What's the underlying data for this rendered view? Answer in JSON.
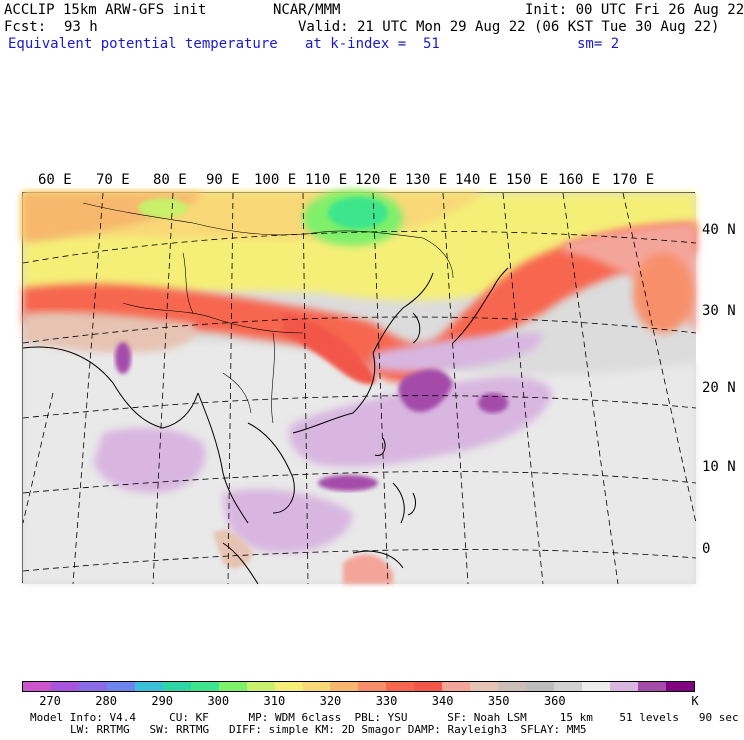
{
  "header": {
    "model": "ACCLIP 15km ARW-GFS init",
    "center": "NCAR/MMM",
    "init": "Init: 00 UTC Fri 26 Aug 22",
    "fcst_label": "Fcst:",
    "fcst_value": "93 h",
    "valid": "Valid: 21 UTC Mon 29 Aug 22 (06 KST Tue 30 Aug 22)",
    "field": "Equivalent potential temperature",
    "level": "at k-index =  51",
    "smooth": "sm= 2"
  },
  "map": {
    "lon_labels": [
      "60 E",
      "70 E",
      "80 E",
      "90 E",
      "100 E",
      "110 E",
      "120 E",
      "130 E",
      "140 E",
      "150 E",
      "160 E",
      "170 E"
    ],
    "lat_labels": [
      "40 N",
      "30 N",
      "20 N",
      "10 N",
      "0"
    ]
  },
  "colorbar": {
    "colors": [
      "#cc55cc",
      "#a855dd",
      "#8a6ce6",
      "#6f85ee",
      "#3cbfd8",
      "#2ed6a6",
      "#3ee58c",
      "#7ff06a",
      "#c8f06a",
      "#f5ef78",
      "#f9d878",
      "#f7b86d",
      "#f7906a",
      "#f7664f",
      "#f2574a",
      "#f4a59a",
      "#e6c3b2",
      "#cbbfb7",
      "#bdbdbd",
      "#d2d2d2",
      "#ededed",
      "#d8b6e0",
      "#a44caa",
      "#800080"
    ],
    "tick_labels": [
      "270",
      "280",
      "290",
      "300",
      "310",
      "320",
      "330",
      "340",
      "350",
      "360"
    ],
    "unit": "K"
  },
  "info": {
    "line1": "Model Info: V4.4     CU: KF      MP: WDM 6class  PBL: YSU      SF: Noah LSM     15 km    51 levels   90 sec",
    "line2": "LW: RRTMG   SW: RRTMG   DIFF: simple KM: 2D Smagor DAMP: Rayleigh3  SFLAY: MM5"
  }
}
